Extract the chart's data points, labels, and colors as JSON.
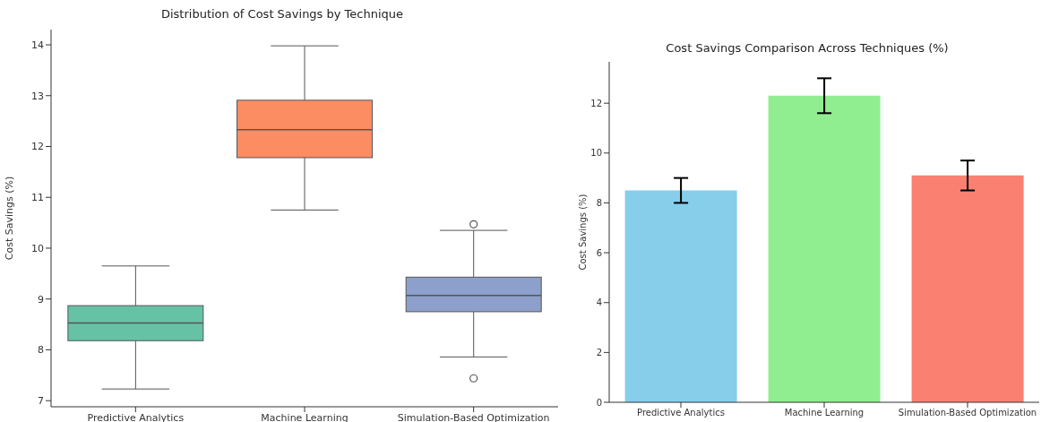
{
  "chart_data": [
    {
      "type": "box",
      "title": "Distribution of Cost Savings by Technique",
      "ylabel": "Cost Savings (%)",
      "categories": [
        "Predictive Analytics",
        "Machine Learning",
        "Simulation-Based Optimization"
      ],
      "boxes": [
        {
          "low": 7.23,
          "q1": 8.18,
          "median": 8.53,
          "q3": 8.87,
          "high": 9.65
        },
        {
          "low": 10.75,
          "q1": 11.78,
          "median": 12.33,
          "q3": 12.91,
          "high": 13.98
        },
        {
          "low": 7.86,
          "q1": 8.75,
          "median": 9.07,
          "q3": 9.43,
          "high": 10.35,
          "outliers": [
            10.47,
            7.44
          ]
        }
      ],
      "colors": [
        "#66c2a5",
        "#fc8d62",
        "#8da0cb"
      ],
      "ylim": [
        6.88,
        14.3
      ],
      "yticks": [
        7,
        8,
        9,
        10,
        11,
        12,
        13,
        14
      ]
    },
    {
      "type": "bar",
      "title": "Cost Savings Comparison Across Techniques (%)",
      "ylabel": "Cost Savings (%)",
      "categories": [
        "Predictive Analytics",
        "Machine Learning",
        "Simulation-Based Optimization"
      ],
      "values": [
        8.5,
        12.3,
        9.1
      ],
      "errors": [
        0.5,
        0.7,
        0.6
      ],
      "colors": [
        "#87ceeb",
        "#90ee90",
        "#fa8072"
      ],
      "ylim": [
        0,
        13.66
      ],
      "yticks": [
        0,
        2,
        4,
        6,
        8,
        10,
        12
      ]
    }
  ]
}
